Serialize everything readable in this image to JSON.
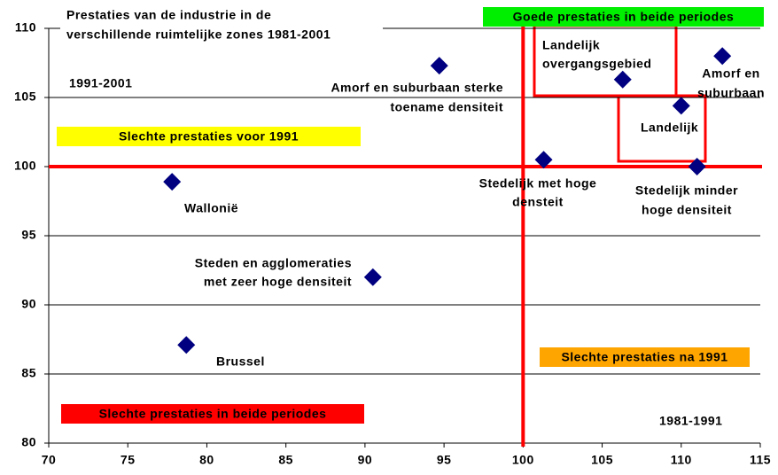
{
  "chart_data": {
    "type": "scatter",
    "title": [
      "Prestaties van de industrie in de",
      "verschillende ruimtelijke zones 1981-2001"
    ],
    "x": [
      77.8,
      78.7,
      90.5,
      94.7,
      101.3,
      106.3,
      110.0,
      111.0,
      112.6
    ],
    "values": [
      98.9,
      87.1,
      92.0,
      107.3,
      100.5,
      106.3,
      104.4,
      100.0,
      108.0
    ],
    "point_labels": [
      [
        "Wallonië"
      ],
      [
        "Brussel"
      ],
      [
        "Steden en agglomeraties",
        "met zeer hoge densiteit"
      ],
      [
        "Amorf en suburbaan sterke",
        "toename densiteit"
      ],
      [
        "Stedelijk met hoge",
        "densteit"
      ],
      [
        "Landelijk",
        "overgangsgebied"
      ],
      [
        "Landelijk"
      ],
      [
        "Stedelijk minder",
        "hoge densiteit"
      ],
      [
        "Amorf en",
        "suburbaan"
      ]
    ],
    "color": "#000080",
    "period_labels": [
      "1991-2001",
      "1981-1991"
    ],
    "quadrant_labels": [
      {
        "text": "Goede prestaties  in beide periodes",
        "color": "#00ee00"
      },
      {
        "text": "Slechte prestaties voor 1991",
        "color": "#ffff00"
      },
      {
        "text": "Slechte prestaties  na 1991",
        "color": "#ffa500"
      },
      {
        "text": "Slechte prestaties  in beide periodes",
        "color": "#ff0000"
      }
    ],
    "reference_lines": {
      "x": 100,
      "y": 100,
      "color": "#ff0000"
    },
    "xlim": [
      70,
      115
    ],
    "xticks": [
      70,
      75,
      80,
      85,
      90,
      95,
      100,
      105,
      110,
      115
    ],
    "ylim": [
      80,
      110
    ],
    "yticks": [
      80,
      85,
      90,
      95,
      100,
      105,
      110
    ],
    "grid": true
  }
}
